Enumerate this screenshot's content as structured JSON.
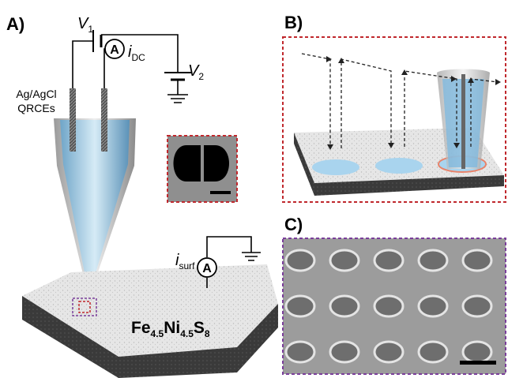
{
  "panel_a": {
    "label": "A)",
    "v1": {
      "symbol": "V",
      "sub": "1"
    },
    "v2": {
      "symbol": "V",
      "sub": "2"
    },
    "idc": {
      "symbol": "i",
      "sub": "DC"
    },
    "ammeter_tip": "A",
    "electrode_lines": [
      "Ag/AgCl",
      "QRCEs"
    ],
    "isurf": {
      "symbol": "i",
      "sub": "surf"
    },
    "ammeter_surf": "A",
    "material": [
      "Fe",
      "4.5",
      "Ni",
      "4.5",
      "S",
      "8"
    ]
  },
  "panel_b": {
    "label": "B)"
  },
  "panel_c": {
    "label": "C)"
  }
}
